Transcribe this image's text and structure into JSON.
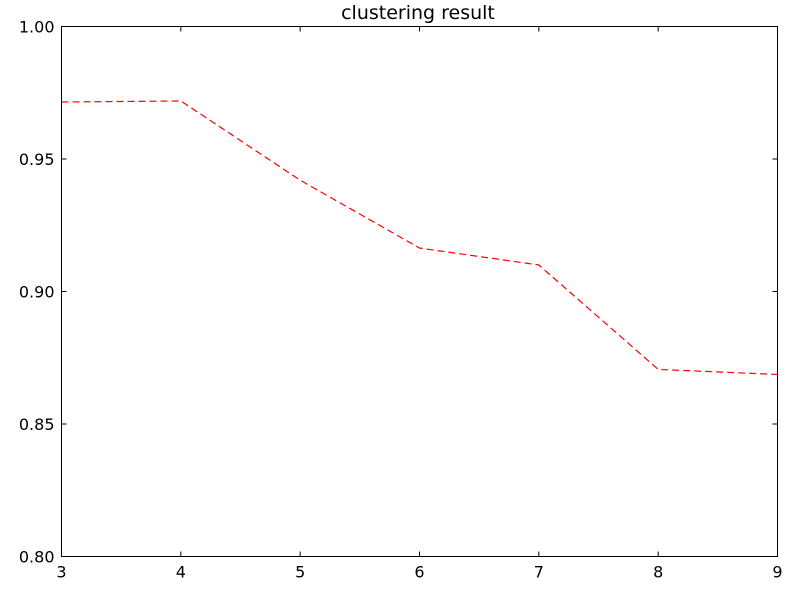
{
  "chart_data": {
    "type": "line",
    "title": "clustering result",
    "xlabel": "",
    "ylabel": "",
    "x": [
      3,
      4,
      5,
      6,
      7,
      8,
      9
    ],
    "series": [
      {
        "values": [
          0.9715,
          0.9719,
          0.942,
          0.9164,
          0.91,
          0.8706,
          0.8687
        ],
        "color": "#ff0000",
        "line_style": "dashed"
      }
    ],
    "xlim": [
      3,
      9
    ],
    "ylim": [
      0.8,
      1.0
    ],
    "xticks": [
      3,
      4,
      5,
      6,
      7,
      8,
      9
    ],
    "yticks": [
      0.8,
      0.85,
      0.9,
      0.95,
      1.0
    ],
    "xtick_labels": [
      "3",
      "4",
      "5",
      "6",
      "7",
      "8",
      "9"
    ],
    "ytick_labels": [
      "0.80",
      "0.85",
      "0.90",
      "0.95",
      "1.00"
    ],
    "grid": false,
    "legend": "none"
  }
}
